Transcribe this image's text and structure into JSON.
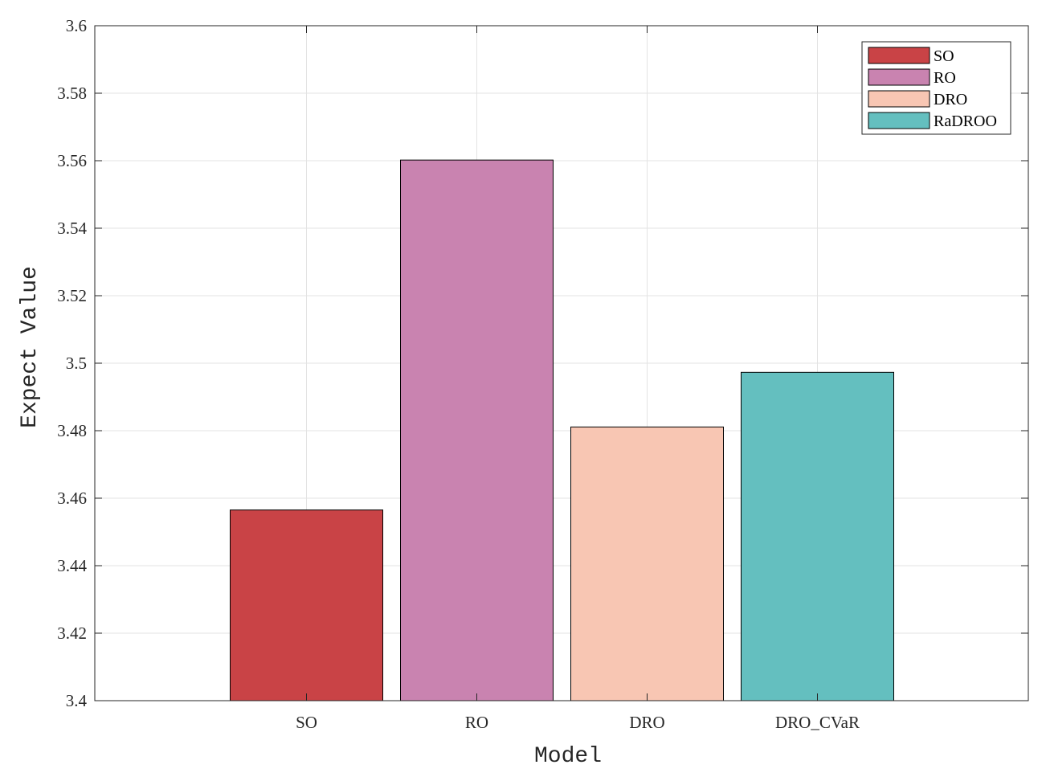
{
  "chart_data": {
    "type": "bar",
    "categories": [
      "SO",
      "RO",
      "DRO",
      "DRO_CVaR"
    ],
    "values": [
      3.4565,
      3.5602,
      3.4811,
      3.4973
    ],
    "colors": [
      "#c94346",
      "#c983b0",
      "#f8c6b3",
      "#64bfbf"
    ],
    "xlabel": "Model",
    "ylabel": "Expect Value",
    "ylim": [
      3.4,
      3.6
    ],
    "yticks": [
      3.4,
      3.42,
      3.44,
      3.46,
      3.48,
      3.5,
      3.52,
      3.54,
      3.56,
      3.58,
      3.6
    ],
    "ytick_labels": [
      "3.4",
      "3.42",
      "3.44",
      "3.46",
      "3.48",
      "3.5",
      "3.52",
      "3.54",
      "3.56",
      "3.58",
      "3.6"
    ],
    "grid": true,
    "legend": {
      "position": "top-right",
      "entries": [
        "SO",
        "RO",
        "DRO",
        "RaDROO"
      ]
    }
  }
}
